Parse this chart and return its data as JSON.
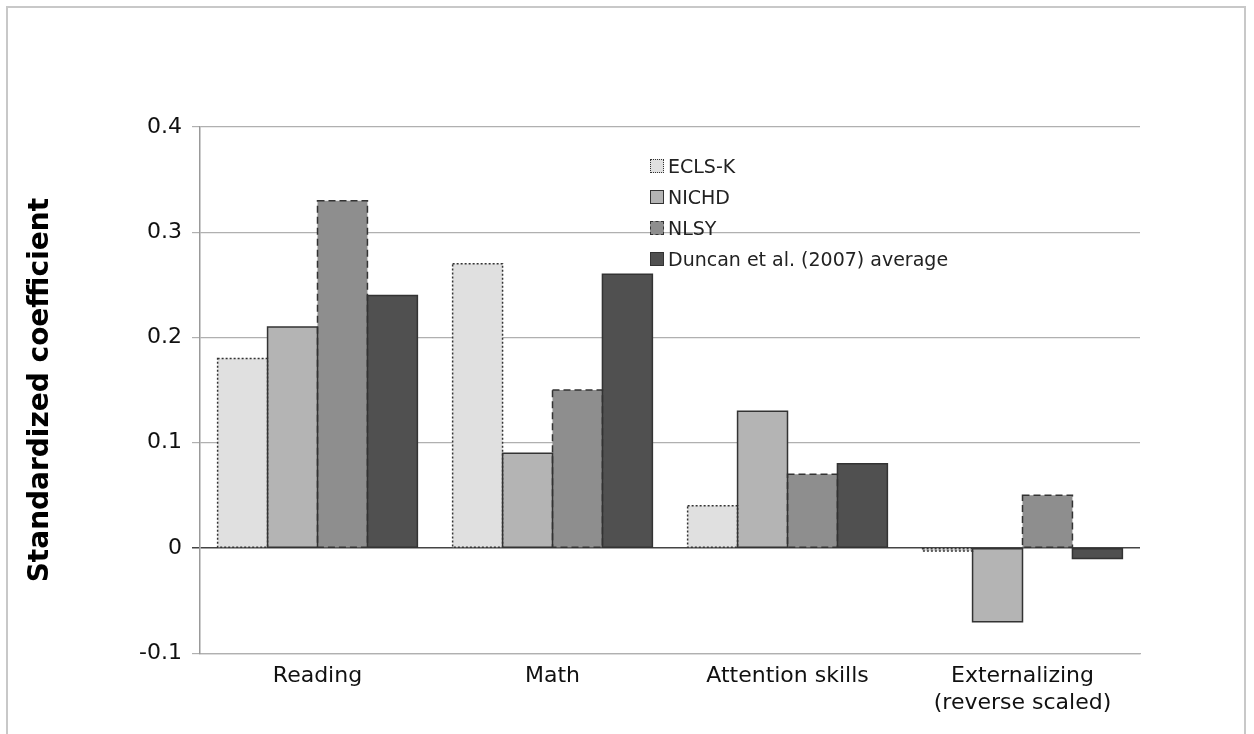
{
  "chart_data": {
    "type": "bar",
    "ylabel": "Standardized coefficient",
    "categories": [
      "Reading",
      "Math",
      "Attention skills",
      "Externalizing (reverse scaled)"
    ],
    "series": [
      {
        "name": "ECLS-K",
        "color": "#e0e0e0",
        "line_style": "dotted",
        "values": [
          0.18,
          0.27,
          0.04,
          -0.003
        ]
      },
      {
        "name": "NICHD",
        "color": "#b4b4b4",
        "line_style": "solid",
        "values": [
          0.21,
          0.09,
          0.13,
          -0.07
        ]
      },
      {
        "name": "NLSY",
        "color": "#8e8e8e",
        "line_style": "dashed",
        "values": [
          0.33,
          0.15,
          0.07,
          0.05
        ]
      },
      {
        "name": "Duncan et al. (2007) average",
        "color": "#505050",
        "line_style": "solid",
        "values": [
          0.24,
          0.26,
          0.08,
          -0.01
        ]
      }
    ],
    "ylim": [
      -0.1,
      0.4
    ],
    "yticks": [
      -0.1,
      0,
      0.1,
      0.2,
      0.3,
      0.4
    ],
    "grid": "y",
    "legend": "top right"
  }
}
